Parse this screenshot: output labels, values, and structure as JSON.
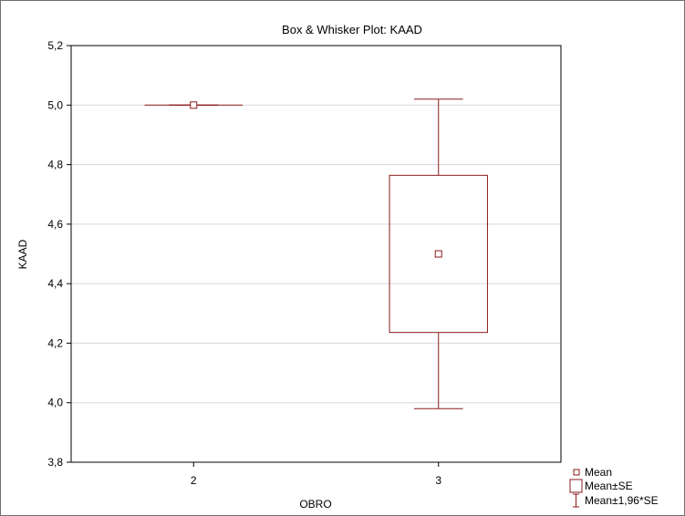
{
  "chart_data": {
    "type": "box",
    "title": "Box & Whisker Plot:    KAAD",
    "xlabel": "OBRO",
    "ylabel": "KAAD",
    "categories": [
      "2",
      "3"
    ],
    "ylim": [
      3.8,
      5.2
    ],
    "yticks": [
      "3,8",
      "4,0",
      "4,2",
      "4,4",
      "4,6",
      "4,8",
      "5,0",
      "5,2"
    ],
    "ytick_values": [
      3.8,
      4.0,
      4.2,
      4.4,
      4.6,
      4.8,
      5.0,
      5.2
    ],
    "grid": true,
    "legend_position": "bottom-right",
    "series": [
      {
        "category": "2",
        "mean": 5.0,
        "box_low": 5.0,
        "box_high": 5.0,
        "whisker_low": 5.0,
        "whisker_high": 5.0
      },
      {
        "category": "3",
        "mean": 4.5,
        "box_low": 4.236,
        "box_high": 4.764,
        "whisker_low": 3.98,
        "whisker_high": 5.02
      }
    ],
    "legend": [
      {
        "symbol": "mean",
        "label": "Mean"
      },
      {
        "symbol": "box",
        "label": "Mean±SE"
      },
      {
        "symbol": "whisker",
        "label": "Mean±1,96*SE"
      }
    ],
    "colors": {
      "marks": "#8b1a1a",
      "grid": "#d9d9d9",
      "axis": "#000000"
    }
  }
}
